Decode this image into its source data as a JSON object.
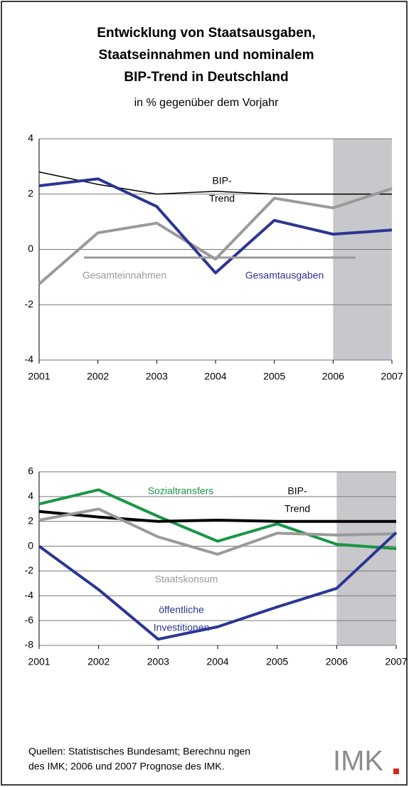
{
  "header": {
    "title_lines": [
      "Entwicklung von Staatsausgaben,",
      "Staatseinnahmen und nominalem",
      "BIP-Trend in Deutschland"
    ],
    "subtitle": "in % gegenüber dem Vorjahr"
  },
  "chart_data": [
    {
      "type": "line",
      "x": [
        2001,
        2002,
        2003,
        2004,
        2005,
        2006,
        2007
      ],
      "xlim": [
        2001,
        2007
      ],
      "xticks": [
        2001,
        2002,
        2003,
        2004,
        2005,
        2006,
        2007
      ],
      "ylim": [
        -4,
        4
      ],
      "yticks": [
        -4,
        -2,
        0,
        2,
        4
      ],
      "grid": true,
      "shaded_x": [
        2006,
        2007
      ],
      "series": [
        {
          "name_lines": [
            "BIP-",
            "Trend"
          ],
          "color": "#000000",
          "width": 1.5,
          "values": [
            2.8,
            2.35,
            2.0,
            2.1,
            2.0,
            2.0,
            2.0
          ]
        },
        {
          "name_lines": [
            "Gesamteinnahmen"
          ],
          "color": "#9a9a9a",
          "width": 4,
          "values": [
            -1.25,
            0.6,
            0.95,
            -0.35,
            1.85,
            1.5,
            2.2
          ]
        },
        {
          "name_lines": [
            "Gesamtausgaben"
          ],
          "color": "#2b3594",
          "width": 4,
          "values": [
            2.3,
            2.55,
            1.55,
            -0.85,
            1.05,
            0.55,
            0.7
          ]
        }
      ]
    },
    {
      "type": "line",
      "x": [
        2001,
        2002,
        2003,
        2004,
        2005,
        2006,
        2007
      ],
      "xlim": [
        2001,
        2007
      ],
      "xticks": [
        2001,
        2002,
        2003,
        2004,
        2005,
        2006,
        2007
      ],
      "ylim": [
        -8,
        6
      ],
      "yticks": [
        -8,
        -6,
        -4,
        -2,
        0,
        2,
        4,
        6
      ],
      "grid": true,
      "shaded_x": [
        2006,
        2007
      ],
      "series": [
        {
          "name_lines": [
            "Sozialtransfers"
          ],
          "color": "#1a9645",
          "width": 4,
          "values": [
            3.4,
            4.55,
            2.4,
            0.4,
            1.8,
            0.15,
            -0.2
          ]
        },
        {
          "name_lines": [
            "BIP-",
            "Trend"
          ],
          "color": "#000000",
          "width": 4,
          "values": [
            2.8,
            2.35,
            2.0,
            2.1,
            2.0,
            2.0,
            2.0
          ]
        },
        {
          "name_lines": [
            "Staatskonsum"
          ],
          "color": "#9a9a9a",
          "width": 4,
          "values": [
            2.1,
            3.0,
            0.75,
            -0.65,
            1.05,
            0.9,
            1.0
          ]
        },
        {
          "name_lines": [
            "öffentliche",
            "Investitionen"
          ],
          "color": "#2b3594",
          "width": 4,
          "values": [
            0,
            -3.5,
            -7.5,
            -6.5,
            -4.9,
            -3.4,
            1.1
          ]
        }
      ]
    }
  ],
  "footer": {
    "source_lines": [
      "Quellen: Statistisches Bundesamt; Berechnu ngen",
      "des IMK; 2006 und 2007 Prognose des IMK."
    ],
    "logo": "IMK"
  }
}
